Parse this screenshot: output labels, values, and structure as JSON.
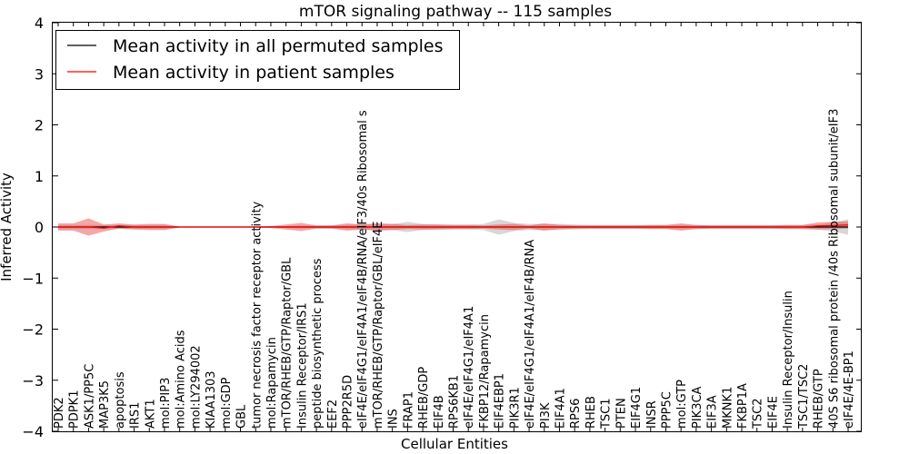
{
  "chart_data": {
    "type": "line",
    "title": "mTOR signaling pathway -- 115 samples",
    "xlabel": "Cellular Entities",
    "ylabel": "Inferred Activity",
    "ylim": [
      -4,
      4
    ],
    "yticks": [
      -4,
      -3,
      -2,
      -1,
      0,
      1,
      2,
      3,
      4
    ],
    "ytick_labels": [
      "−4",
      "−3",
      "−2",
      "−1",
      "0",
      "1",
      "2",
      "3",
      "4"
    ],
    "legend": {
      "placement": "top-left",
      "entries": [
        {
          "label": "Mean activity in all permuted samples",
          "color": "#000000"
        },
        {
          "label": "Mean activity in patient samples",
          "color": "#ff0000"
        }
      ]
    },
    "categories": [
      "PDK2",
      "PDPK1",
      "ASK1/PP5C",
      "MAP3K5",
      "apoptosis",
      "IRS1",
      "AKT1",
      "mol:PIP3",
      "mol:Amino Acids",
      "mol:LY294002",
      "KIAA1303",
      "mol:GDP",
      "GBL",
      "tumor necrosis factor receptor activity",
      "mol:Rapamycin",
      "mTOR/RHEB/GTP/Raptor/GBL",
      "Insulin Receptor/IRS1",
      "peptide biosynthetic process",
      "EEF2",
      "PPP2R5D",
      "eIF4E/eIF4G1/eIF4A1/eIF4B/RNA/eIF3/40s Ribosomal s",
      "mTOR/RHEB/GTP/Raptor/GBL/eIF4E",
      "INS",
      "FRAP1",
      "RHEB/GDP",
      "EIF4B",
      "RPS6KB1",
      "eIF4E/eIF4G1/eIF4A1",
      "FKBP12/Rapamycin",
      "EIF4EBP1",
      "PIK3R1",
      "eIF4E/eIF4G1/eIF4A1/eIF4B/RNA",
      "PI3K",
      "EIF4A1",
      "RPS6",
      "RHEB",
      "TSC1",
      "PTEN",
      "EIF4G1",
      "INSR",
      "PPP5C",
      "mol:GTP",
      "PIK3CA",
      "EIF3A",
      "MKNK1",
      "FKBP1A",
      "TSC2",
      "EIF4E",
      "Insulin Receptor/Insulin",
      "TSC1/TSC2",
      "RHEB/GTP",
      "40S S6 ribosomal protein /40s Ribosomal subunit/eIF3",
      "eIF4E/4E-BP1"
    ],
    "series": [
      {
        "name": "Mean activity in all permuted samples",
        "color": "#000000",
        "values": [
          0,
          0,
          0,
          0,
          0,
          0,
          0,
          0,
          0,
          0,
          0,
          0,
          0,
          0,
          0,
          0,
          0,
          0,
          0,
          0,
          0,
          0,
          0,
          0,
          0,
          0,
          0,
          0,
          0,
          0,
          0,
          0,
          0,
          0,
          0,
          0,
          0,
          0,
          0,
          0,
          0,
          0,
          0,
          0,
          0,
          0,
          0,
          0,
          0,
          0,
          0,
          0,
          0
        ],
        "band": [
          0.04,
          0.04,
          0.04,
          0.04,
          0.04,
          0.04,
          0.04,
          0.04,
          0.01,
          0.01,
          0.01,
          0.01,
          0.01,
          0.01,
          0.01,
          0.02,
          0.03,
          0.03,
          0.03,
          0.04,
          0.06,
          0.06,
          0.06,
          0.1,
          0.06,
          0.05,
          0.05,
          0.05,
          0.06,
          0.15,
          0.08,
          0.06,
          0.06,
          0.06,
          0.05,
          0.04,
          0.04,
          0.04,
          0.04,
          0.04,
          0.04,
          0.04,
          0.04,
          0.04,
          0.04,
          0.04,
          0.04,
          0.04,
          0.04,
          0.04,
          0.05,
          0.09,
          0.15
        ]
      },
      {
        "name": "Mean activity in patient samples",
        "color": "#ff0000",
        "values": [
          0,
          0,
          0,
          -0.02,
          0.02,
          0,
          0,
          0,
          0,
          0,
          0,
          0,
          0,
          0,
          0,
          0,
          0,
          0,
          0,
          0,
          0,
          0,
          0,
          0,
          0,
          0,
          0,
          0,
          0,
          0,
          0,
          0,
          0,
          0,
          0,
          0,
          0,
          0,
          0,
          0,
          0,
          0,
          0,
          0,
          0,
          0,
          0,
          0,
          0,
          0,
          0.02,
          0.03,
          0.04
        ],
        "band": [
          0.07,
          0.07,
          0.17,
          0.07,
          0.05,
          0.05,
          0.06,
          0.06,
          0.01,
          0.01,
          0.01,
          0.01,
          0.01,
          0.01,
          0.02,
          0.05,
          0.08,
          0.03,
          0.03,
          0.07,
          0.05,
          0.07,
          0.06,
          0.04,
          0.05,
          0.05,
          0.04,
          0.04,
          0.03,
          0.05,
          0.06,
          0.03,
          0.07,
          0.04,
          0.03,
          0.03,
          0.03,
          0.03,
          0.03,
          0.04,
          0.04,
          0.07,
          0.04,
          0.03,
          0.03,
          0.03,
          0.03,
          0.03,
          0.04,
          0.04,
          0.07,
          0.07,
          0.07
        ]
      }
    ]
  }
}
